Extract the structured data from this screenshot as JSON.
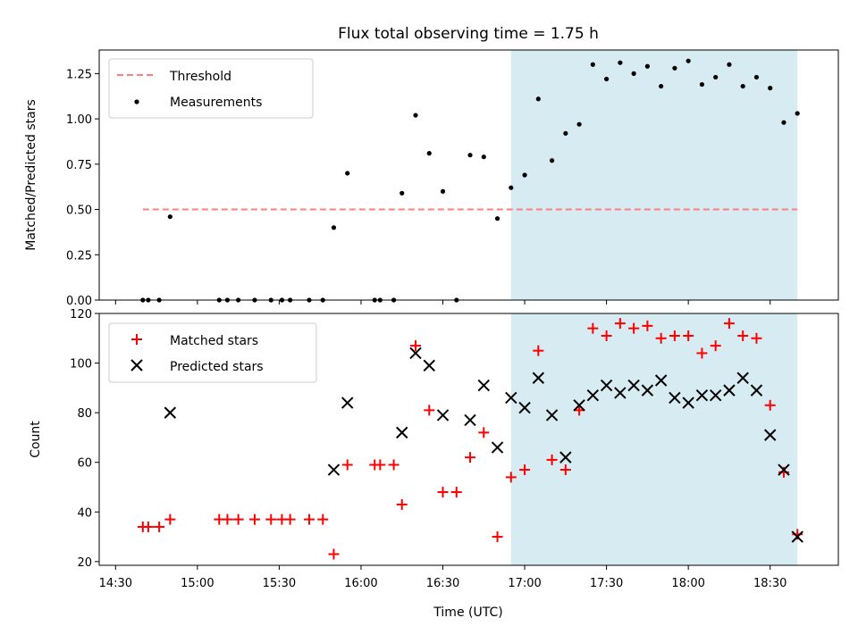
{
  "chart_data": [
    {
      "type": "scatter",
      "title": "Flux total observing time = 1.75 h",
      "xlabel": "",
      "ylabel": "Matched/Predicted stars",
      "xlim": [
        "14:24",
        "18:55"
      ],
      "ylim": [
        0,
        1.38
      ],
      "yticks": [
        0.0,
        0.25,
        0.5,
        0.75,
        1.0,
        1.25
      ],
      "yticklabels": [
        "0.00",
        "0.25",
        "0.50",
        "0.75",
        "1.00",
        "1.25"
      ],
      "shaded_span": [
        "16:55",
        "18:40"
      ],
      "shaded_color": "#add8e6",
      "legend_position": "top-left",
      "series": [
        {
          "name": "Threshold",
          "kind": "dashed-line",
          "color": "#ff7f7f",
          "x": [
            "14:40",
            "18:40"
          ],
          "y": [
            0.5,
            0.5
          ]
        },
        {
          "name": "Measurements",
          "kind": "dot",
          "color": "#000000",
          "x": [
            "14:40",
            "14:42",
            "14:46",
            "14:50",
            "15:08",
            "15:11",
            "15:15",
            "15:21",
            "15:27",
            "15:31",
            "15:34",
            "15:41",
            "15:46",
            "15:50",
            "15:55",
            "16:05",
            "16:07",
            "16:12",
            "16:15",
            "16:20",
            "16:25",
            "16:30",
            "16:35",
            "16:40",
            "16:45",
            "16:50",
            "16:55",
            "17:00",
            "17:05",
            "17:10",
            "17:15",
            "17:20",
            "17:25",
            "17:30",
            "17:35",
            "17:40",
            "17:45",
            "17:50",
            "17:55",
            "18:00",
            "18:05",
            "18:10",
            "18:15",
            "18:20",
            "18:25",
            "18:30",
            "18:35",
            "18:40"
          ],
          "y": [
            0.0,
            0.0,
            0.0,
            0.46,
            0.0,
            0.0,
            0.0,
            0.0,
            0.0,
            0.0,
            0.0,
            0.0,
            0.0,
            0.4,
            0.7,
            0.0,
            0.0,
            0.0,
            0.59,
            1.02,
            0.81,
            0.6,
            0.0,
            0.8,
            0.79,
            0.45,
            0.62,
            0.69,
            1.11,
            0.77,
            0.92,
            0.97,
            1.3,
            1.22,
            1.31,
            1.25,
            1.29,
            1.18,
            1.28,
            1.32,
            1.19,
            1.23,
            1.3,
            1.18,
            1.23,
            1.17,
            0.98,
            1.03
          ]
        }
      ]
    },
    {
      "type": "scatter",
      "title": "",
      "xlabel": "Time (UTC)",
      "ylabel": "Count",
      "xlim": [
        "14:24",
        "18:55"
      ],
      "ylim": [
        18.5,
        120
      ],
      "xticks": [
        "14:30",
        "15:00",
        "15:30",
        "16:00",
        "16:30",
        "17:00",
        "17:30",
        "18:00",
        "18:30"
      ],
      "yticks": [
        20,
        40,
        60,
        80,
        100,
        120
      ],
      "yticklabels": [
        "20",
        "40",
        "60",
        "80",
        "100",
        "120"
      ],
      "shaded_span": [
        "16:55",
        "18:40"
      ],
      "shaded_color": "#add8e6",
      "legend_position": "top-left",
      "series": [
        {
          "name": "Matched stars",
          "kind": "plus",
          "color": "#ff0000",
          "x": [
            "14:40",
            "14:42",
            "14:46",
            "14:50",
            "15:08",
            "15:11",
            "15:15",
            "15:21",
            "15:27",
            "15:31",
            "15:34",
            "15:41",
            "15:46",
            "15:50",
            "15:55",
            "16:05",
            "16:07",
            "16:12",
            "16:15",
            "16:20",
            "16:25",
            "16:30",
            "16:35",
            "16:40",
            "16:45",
            "16:50",
            "16:55",
            "17:00",
            "17:05",
            "17:10",
            "17:15",
            "17:20",
            "17:25",
            "17:30",
            "17:35",
            "17:40",
            "17:45",
            "17:50",
            "17:55",
            "18:00",
            "18:05",
            "18:10",
            "18:15",
            "18:20",
            "18:25",
            "18:30",
            "18:35",
            "18:40"
          ],
          "y": [
            34,
            34,
            34,
            37,
            37,
            37,
            37,
            37,
            37,
            37,
            37,
            37,
            37,
            23,
            59,
            59,
            59,
            59,
            43,
            107,
            81,
            48,
            48,
            62,
            72,
            30,
            54,
            57,
            105,
            61,
            57,
            81,
            114,
            111,
            116,
            114,
            115,
            110,
            111,
            111,
            104,
            107,
            116,
            111,
            110,
            83,
            56,
            31
          ]
        },
        {
          "name": "Predicted stars",
          "kind": "cross",
          "color": "#000000",
          "x": [
            "14:50",
            "15:50",
            "15:55",
            "16:15",
            "16:20",
            "16:25",
            "16:30",
            "16:40",
            "16:45",
            "16:50",
            "16:55",
            "17:00",
            "17:05",
            "17:10",
            "17:15",
            "17:20",
            "17:25",
            "17:30",
            "17:35",
            "17:40",
            "17:45",
            "17:50",
            "17:55",
            "18:00",
            "18:05",
            "18:10",
            "18:15",
            "18:20",
            "18:25",
            "18:30",
            "18:35",
            "18:40"
          ],
          "y": [
            80,
            57,
            84,
            72,
            104,
            99,
            79,
            77,
            91,
            66,
            86,
            82,
            94,
            79,
            62,
            83,
            87,
            91,
            88,
            91,
            89,
            93,
            86,
            84,
            87,
            87,
            89,
            94,
            89,
            71,
            57,
            30
          ]
        }
      ]
    }
  ]
}
